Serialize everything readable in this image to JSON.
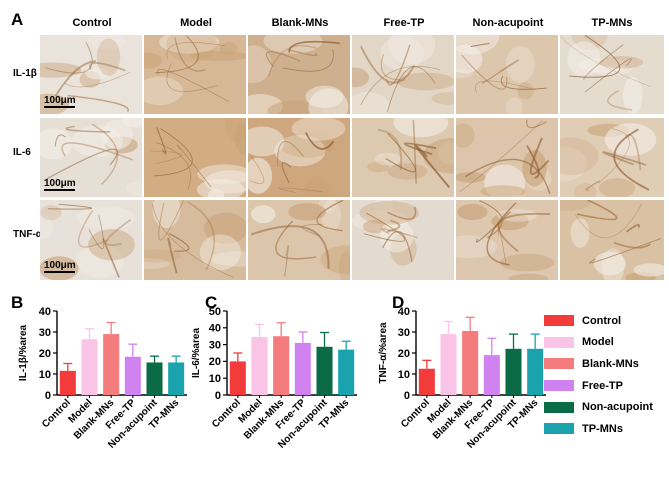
{
  "panel_letters": {
    "a": "A",
    "b": "B",
    "c": "C",
    "d": "D"
  },
  "micrographs": {
    "columns": [
      "Control",
      "Model",
      "Blank-MNs",
      "Free-TP",
      "Non-acupoint",
      "TP-MNs"
    ],
    "rows": [
      "IL-1β",
      "IL-6",
      "TNF-α"
    ],
    "scale_bar": "100μm"
  },
  "colors": {
    "Control": "#f23b3b",
    "Model": "#f9c4e5",
    "Blank-MNs": "#f47c7c",
    "Free-TP": "#d083f0",
    "Non-acupoint": "#0b6b47",
    "TP-MNs": "#1aa2ad"
  },
  "legend": [
    "Control",
    "Model",
    "Blank-MNs",
    "Free-TP",
    "Non-acupoint",
    "TP-MNs"
  ],
  "chart_data": [
    {
      "type": "bar",
      "panel": "B",
      "categories": [
        "Control",
        "Model",
        "Blank-MNs",
        "Free-TP",
        "Non-acupoint",
        "TP-MNs"
      ],
      "values": [
        11.5,
        26.5,
        29.0,
        18.2,
        15.5,
        15.5
      ],
      "error_bars": [
        3.5,
        5.0,
        5.5,
        6.0,
        3.0,
        3.0
      ],
      "ylabel": "IL-1β/%area",
      "ylim": [
        0,
        40
      ],
      "yticks": [
        0,
        10,
        20,
        30,
        40
      ],
      "grid": false
    },
    {
      "type": "bar",
      "panel": "C",
      "categories": [
        "Control",
        "Model",
        "Blank-MNs",
        "Free-TP",
        "Non-acupoint",
        "TP-MNs"
      ],
      "values": [
        20.0,
        34.5,
        35.0,
        31.0,
        28.7,
        27.0
      ],
      "error_bars": [
        5.0,
        7.5,
        8.0,
        6.5,
        8.5,
        5.0
      ],
      "ylabel": "IL-6/%area",
      "ylim": [
        0,
        50
      ],
      "yticks": [
        0,
        10,
        20,
        30,
        40,
        50
      ],
      "grid": false
    },
    {
      "type": "bar",
      "panel": "D",
      "categories": [
        "Control",
        "Model",
        "Blank-MNs",
        "Free-TP",
        "Non-acupoint",
        "TP-MNs"
      ],
      "values": [
        12.5,
        29.0,
        30.5,
        19.0,
        22.0,
        22.0
      ],
      "error_bars": [
        4.0,
        6.0,
        6.5,
        8.0,
        7.0,
        7.0
      ],
      "ylabel": "TNF-α/%area",
      "ylim": [
        0,
        40
      ],
      "yticks": [
        0,
        10,
        20,
        30,
        40
      ],
      "grid": false
    }
  ]
}
